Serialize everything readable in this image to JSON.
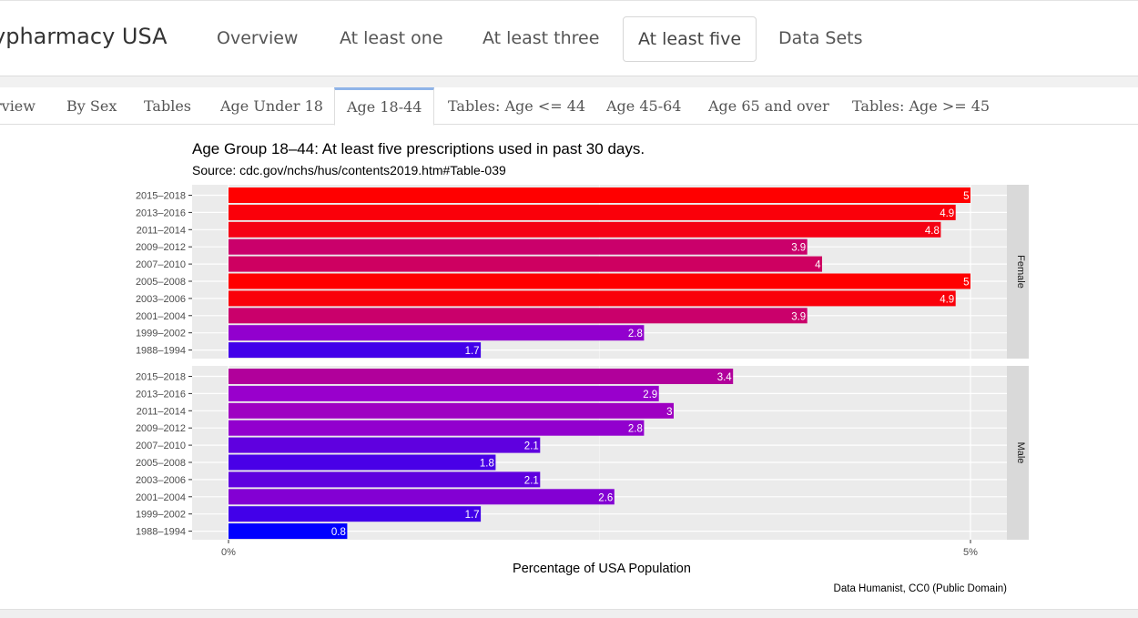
{
  "navbar": {
    "brand": "ypharmacy USA",
    "items": [
      {
        "label": "Overview",
        "active": false
      },
      {
        "label": "At least one",
        "active": false
      },
      {
        "label": "At least three",
        "active": false
      },
      {
        "label": "At least five",
        "active": true
      },
      {
        "label": "Data Sets",
        "active": false
      }
    ]
  },
  "tabs": [
    {
      "label": "rview",
      "active": false
    },
    {
      "label": "By Sex",
      "active": false
    },
    {
      "label": "Tables",
      "active": false
    },
    {
      "label": "Age Under 18",
      "active": false
    },
    {
      "label": "Age 18-44",
      "active": true
    },
    {
      "label": "Tables: Age <= 44",
      "active": false
    },
    {
      "label": "Age 45-64",
      "active": false
    },
    {
      "label": "Age 65 and over",
      "active": false
    },
    {
      "label": "Tables: Age >= 45",
      "active": false
    }
  ],
  "chart_data": {
    "type": "bar",
    "orientation": "horizontal",
    "title": "Age Group 18–44: At least five prescriptions used in past 30 days.",
    "subtitle": "Source: cdc.gov/nchs/hus/contents2019.htm#Table-039",
    "xlabel": "Percentage of USA Population",
    "ylabel": "",
    "caption": "Data Humanist, CC0 (Public Domain)",
    "xlim": [
      0,
      5.25
    ],
    "x_ticks": [
      {
        "value": 0,
        "label": "0%"
      },
      {
        "value": 5,
        "label": "5%"
      }
    ],
    "grid": true,
    "color_scale": {
      "low": "#0000ff",
      "mid": "#9900cc",
      "high": "#ff0000"
    },
    "categories": [
      "2015–2018",
      "2013–2016",
      "2011–2014",
      "2009–2012",
      "2007–2010",
      "2005–2008",
      "2003–2006",
      "2001–2004",
      "1999–2002",
      "1988–1994"
    ],
    "facets": [
      {
        "name": "Female",
        "values": [
          5,
          4.9,
          4.8,
          3.9,
          4,
          5,
          4.9,
          3.9,
          2.8,
          1.7
        ]
      },
      {
        "name": "Male",
        "values": [
          3.4,
          2.9,
          3,
          2.8,
          2.1,
          1.8,
          2.1,
          2.6,
          1.7,
          0.8
        ]
      }
    ]
  }
}
